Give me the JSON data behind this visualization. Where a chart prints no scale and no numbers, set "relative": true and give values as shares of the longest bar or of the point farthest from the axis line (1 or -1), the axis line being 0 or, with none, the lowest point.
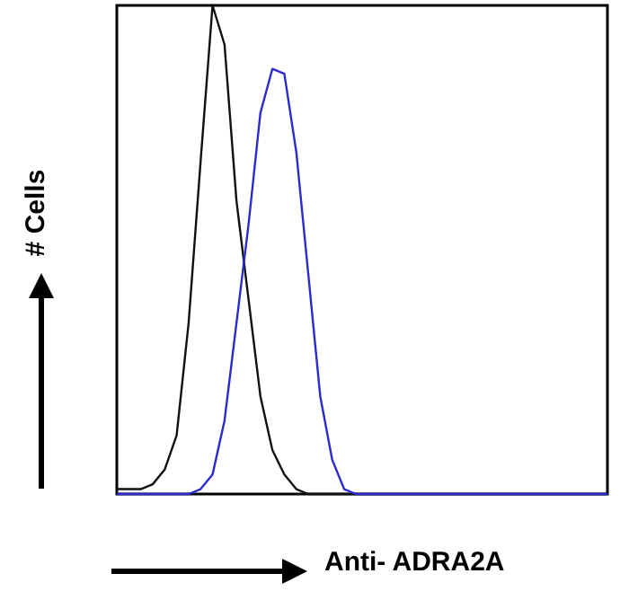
{
  "chart_data": {
    "type": "line",
    "relative": true,
    "xlabel": "Anti- ADRA2A",
    "ylabel": "# Cells",
    "categories": [
      null,
      null,
      null,
      null,
      null,
      null,
      null,
      null,
      null,
      null,
      null,
      null,
      null,
      null,
      null,
      null,
      null,
      null,
      null,
      null,
      null,
      null,
      null,
      null,
      null,
      null,
      null,
      null,
      null,
      null,
      null,
      null,
      null,
      null,
      null,
      null,
      null,
      null,
      null,
      null,
      null,
      null
    ],
    "series": [
      {
        "color": "#111111",
        "values": [
          0.01,
          0.01,
          0.01,
          0.02,
          0.05,
          0.12,
          0.35,
          0.68,
          1,
          0.92,
          0.6,
          0.4,
          0.2,
          0.09,
          0.04,
          0.01,
          0,
          0,
          0,
          0,
          0,
          0,
          0,
          0,
          0,
          0,
          0,
          0,
          0,
          0,
          0,
          0,
          0,
          0,
          0,
          0,
          0,
          0,
          0,
          0,
          0,
          0
        ]
      },
      {
        "color": "#2b2bd0",
        "values": [
          0,
          0,
          0,
          0,
          0,
          0,
          0,
          0.01,
          0.04,
          0.15,
          0.35,
          0.55,
          0.78,
          0.87,
          0.86,
          0.7,
          0.45,
          0.2,
          0.07,
          0.01,
          0,
          0,
          0,
          0,
          0,
          0,
          0,
          0,
          0,
          0,
          0,
          0,
          0,
          0,
          0,
          0,
          0,
          0,
          0,
          0,
          0,
          0
        ]
      }
    ]
  }
}
